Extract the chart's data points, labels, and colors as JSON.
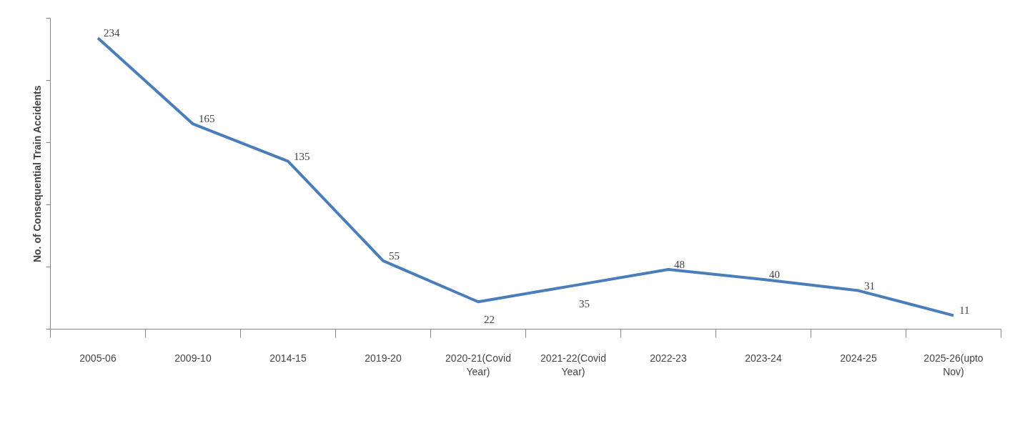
{
  "chart_data": {
    "type": "line",
    "ylabel": "No. of Consequential Train Accidents",
    "categories": [
      "2005-06",
      "2009-10",
      "2014-15",
      "2019-20",
      "2020-21(Covid Year)",
      "2021-22(Covid Year)",
      "2022-23",
      "2023-24",
      "2024-25",
      "2025-26(upto Nov)"
    ],
    "series": [
      {
        "color": "#4a7ebb",
        "values": [
          234,
          165,
          135,
          55,
          22,
          35,
          48,
          40,
          31,
          11
        ]
      }
    ],
    "ylim": [
      0,
      250
    ],
    "yticks": [
      {
        "value": 0,
        "label": null
      },
      {
        "value": 50,
        "label": null
      },
      {
        "value": 100,
        "label": null
      },
      {
        "value": 150,
        "label": null
      },
      {
        "value": 200,
        "label": null
      },
      {
        "value": 250,
        "label": null
      }
    ],
    "tick_labels": "x",
    "data_labels": true,
    "grid": false
  }
}
